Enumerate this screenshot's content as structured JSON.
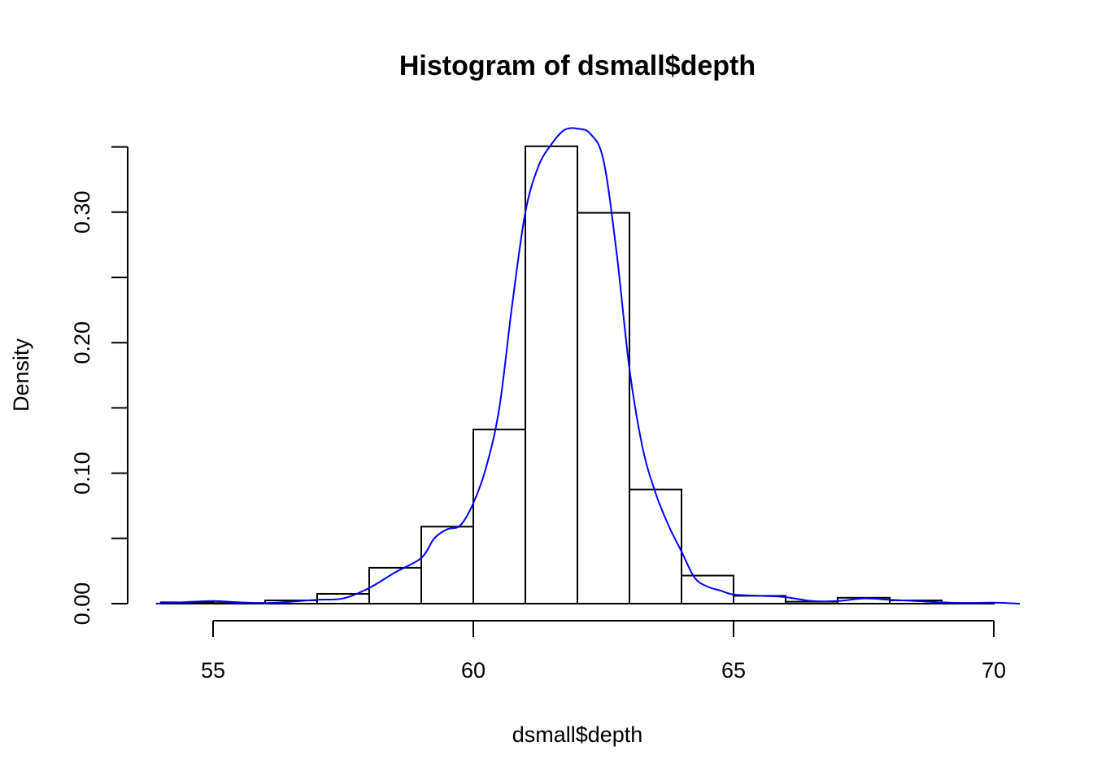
{
  "chart_data": {
    "type": "bar",
    "title": "Histogram of dsmall$depth",
    "xlabel": "dsmall$depth",
    "ylabel": "Density",
    "bin_edges": [
      54,
      55,
      56,
      57,
      58,
      59,
      60,
      61,
      62,
      63,
      64,
      65,
      66,
      67,
      68,
      69,
      70
    ],
    "values": [
      0.001,
      0.0005,
      0.0025,
      0.0075,
      0.0275,
      0.059,
      0.1335,
      0.3505,
      0.2995,
      0.0875,
      0.0215,
      0.006,
      0.0015,
      0.0045,
      0.0025,
      0.0005
    ],
    "x_ticks": [
      55,
      60,
      65,
      70
    ],
    "x_tick_labels": [
      "55",
      "60",
      "65",
      "70"
    ],
    "y_ticks": [
      0.0,
      0.05,
      0.1,
      0.15,
      0.2,
      0.25,
      0.3,
      0.35
    ],
    "y_tick_labels": [
      "0.00",
      "",
      "0.10",
      "",
      "0.20",
      "",
      "0.30",
      ""
    ],
    "xlim": [
      54,
      70.5
    ],
    "ylim": [
      0,
      0.365
    ],
    "bar_fill": "#ffffff",
    "bar_stroke": "#000000",
    "density_curve": {
      "color": "#0000ff",
      "points": [
        [
          53.9,
          0.0
        ],
        [
          54.5,
          0.0012
        ],
        [
          55.0,
          0.002
        ],
        [
          55.5,
          0.001
        ],
        [
          56.0,
          0.0005
        ],
        [
          56.5,
          0.0015
        ],
        [
          57.0,
          0.003
        ],
        [
          57.5,
          0.004
        ],
        [
          58.0,
          0.012
        ],
        [
          58.5,
          0.024
        ],
        [
          59.0,
          0.035
        ],
        [
          59.25,
          0.05
        ],
        [
          59.5,
          0.057
        ],
        [
          59.75,
          0.06
        ],
        [
          60.0,
          0.077
        ],
        [
          60.25,
          0.105
        ],
        [
          60.5,
          0.15
        ],
        [
          60.75,
          0.23
        ],
        [
          61.0,
          0.3
        ],
        [
          61.25,
          0.335
        ],
        [
          61.5,
          0.352
        ],
        [
          61.75,
          0.363
        ],
        [
          62.0,
          0.364
        ],
        [
          62.25,
          0.36
        ],
        [
          62.5,
          0.34
        ],
        [
          62.75,
          0.27
        ],
        [
          63.0,
          0.18
        ],
        [
          63.25,
          0.12
        ],
        [
          63.5,
          0.085
        ],
        [
          63.75,
          0.06
        ],
        [
          64.0,
          0.04
        ],
        [
          64.25,
          0.02
        ],
        [
          64.5,
          0.013
        ],
        [
          64.75,
          0.01
        ],
        [
          65.0,
          0.007
        ],
        [
          65.5,
          0.006
        ],
        [
          66.0,
          0.005
        ],
        [
          66.5,
          0.002
        ],
        [
          67.0,
          0.002
        ],
        [
          67.5,
          0.004
        ],
        [
          68.0,
          0.003
        ],
        [
          68.5,
          0.002
        ],
        [
          69.0,
          0.001
        ],
        [
          69.5,
          0.0005
        ],
        [
          70.0,
          0.0008
        ],
        [
          70.5,
          0.0
        ]
      ]
    }
  }
}
